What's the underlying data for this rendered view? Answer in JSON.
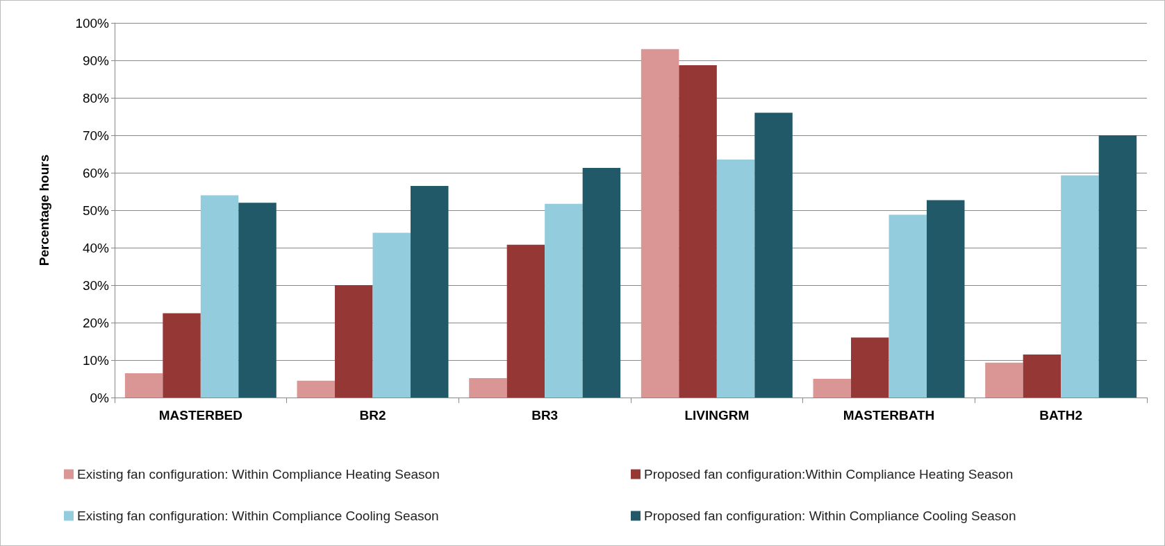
{
  "chart_data": {
    "type": "bar",
    "ylabel": "Percentage hours",
    "categories": [
      "MASTERBED",
      "BR2",
      "BR3",
      "LIVINGRM",
      "MASTERBATH",
      "BATH2"
    ],
    "series": [
      {
        "name": "Existing fan configuration: Within Compliance Heating Season",
        "color": "#d99694",
        "values": [
          6.5,
          4.5,
          5.2,
          93,
          5,
          9.3
        ]
      },
      {
        "name": "Proposed fan configuration:Within Compliance Heating Season",
        "color": "#953735",
        "values": [
          22.5,
          30,
          40.8,
          88.7,
          16,
          11.5
        ]
      },
      {
        "name": "Existing fan configuration: Within Compliance Cooling Season",
        "color": "#93cddd",
        "values": [
          54,
          44,
          51.7,
          63.5,
          48.8,
          59.3
        ]
      },
      {
        "name": "Proposed fan configuration: Within Compliance Cooling Season",
        "color": "#215968",
        "values": [
          52,
          56.5,
          61.3,
          76,
          52.7,
          70
        ]
      }
    ],
    "ylim": [
      0,
      100
    ],
    "yticks": [
      {
        "value": 0,
        "label": "0%"
      },
      {
        "value": 10,
        "label": "10%"
      },
      {
        "value": 20,
        "label": "20%"
      },
      {
        "value": 30,
        "label": "30%"
      },
      {
        "value": 40,
        "label": "40%"
      },
      {
        "value": 50,
        "label": "50%"
      },
      {
        "value": 60,
        "label": "60%"
      },
      {
        "value": 70,
        "label": "70%"
      },
      {
        "value": 80,
        "label": "80%"
      },
      {
        "value": 90,
        "label": "90%"
      },
      {
        "value": 100,
        "label": "100%"
      }
    ],
    "grid": "y",
    "legend": "bottom"
  }
}
